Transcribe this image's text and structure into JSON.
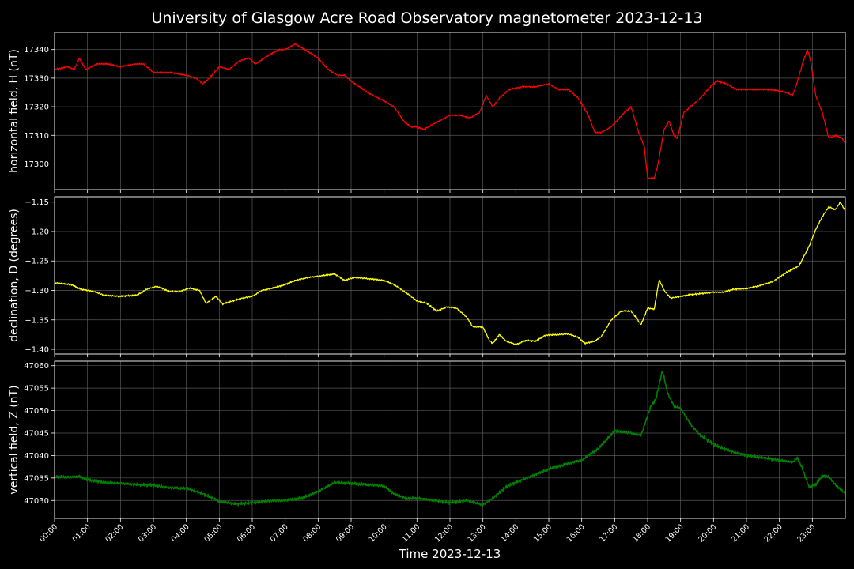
{
  "chart_data": {
    "type": "line",
    "title": "University of Glasgow Acre Road Observatory magnetometer 2023-12-13",
    "xlabel": "Time 2023-12-13",
    "x_range_hours": [
      0,
      24
    ],
    "x_ticks": [
      "00:00",
      "01:00",
      "02:00",
      "03:00",
      "04:00",
      "05:00",
      "06:00",
      "07:00",
      "08:00",
      "09:00",
      "10:00",
      "11:00",
      "12:00",
      "13:00",
      "14:00",
      "15:00",
      "16:00",
      "17:00",
      "18:00",
      "19:00",
      "20:00",
      "21:00",
      "22:00",
      "23:00"
    ],
    "grid": true,
    "panels": [
      {
        "id": "H",
        "ylabel": "horizontal field, H (nT)",
        "color": "#ff0000",
        "ylim": [
          17291,
          17346
        ],
        "yticks": [
          17300,
          17310,
          17320,
          17330,
          17340
        ],
        "ytick_labels": [
          "17300",
          "17310",
          "17320",
          "17330",
          "17340"
        ],
        "points": [
          [
            0,
            17333
          ],
          [
            0.4,
            17334
          ],
          [
            0.6,
            17333
          ],
          [
            0.75,
            17337
          ],
          [
            0.95,
            17333
          ],
          [
            1.3,
            17335
          ],
          [
            1.6,
            17335
          ],
          [
            2,
            17334
          ],
          [
            2.5,
            17335
          ],
          [
            2.7,
            17335
          ],
          [
            3,
            17332
          ],
          [
            3.5,
            17332
          ],
          [
            4,
            17331
          ],
          [
            4.3,
            17330
          ],
          [
            4.5,
            17328
          ],
          [
            4.7,
            17330
          ],
          [
            5,
            17334
          ],
          [
            5.3,
            17333
          ],
          [
            5.6,
            17336
          ],
          [
            5.9,
            17337
          ],
          [
            6.1,
            17335
          ],
          [
            6.5,
            17338
          ],
          [
            6.8,
            17340
          ],
          [
            7,
            17340
          ],
          [
            7.3,
            17342
          ],
          [
            7.6,
            17340
          ],
          [
            8,
            17337
          ],
          [
            8.3,
            17333
          ],
          [
            8.6,
            17331
          ],
          [
            8.8,
            17331
          ],
          [
            9,
            17329
          ],
          [
            9.5,
            17325
          ],
          [
            10,
            17322
          ],
          [
            10.3,
            17320
          ],
          [
            10.6,
            17315
          ],
          [
            10.8,
            17313
          ],
          [
            11,
            17313
          ],
          [
            11.2,
            17312
          ],
          [
            11.5,
            17314
          ],
          [
            12,
            17317
          ],
          [
            12.3,
            17317
          ],
          [
            12.6,
            17316
          ],
          [
            12.9,
            17318
          ],
          [
            13.1,
            17324
          ],
          [
            13.3,
            17320
          ],
          [
            13.5,
            17323
          ],
          [
            13.8,
            17326
          ],
          [
            14.2,
            17327
          ],
          [
            14.6,
            17327
          ],
          [
            15,
            17328
          ],
          [
            15.3,
            17326
          ],
          [
            15.6,
            17326
          ],
          [
            15.9,
            17323
          ],
          [
            16.2,
            17317
          ],
          [
            16.4,
            17311
          ],
          [
            16.6,
            17311
          ],
          [
            16.9,
            17313
          ],
          [
            17.3,
            17318
          ],
          [
            17.5,
            17320
          ],
          [
            17.7,
            17312
          ],
          [
            17.9,
            17306
          ],
          [
            18,
            17295
          ],
          [
            18.2,
            17295
          ],
          [
            18.3,
            17299
          ],
          [
            18.5,
            17312
          ],
          [
            18.65,
            17315
          ],
          [
            18.8,
            17310
          ],
          [
            18.9,
            17309
          ],
          [
            19.1,
            17318
          ],
          [
            19.4,
            17321
          ],
          [
            19.6,
            17323
          ],
          [
            19.9,
            17327
          ],
          [
            20.1,
            17329
          ],
          [
            20.4,
            17328
          ],
          [
            20.7,
            17326
          ],
          [
            21,
            17326
          ],
          [
            21.4,
            17326
          ],
          [
            21.8,
            17326
          ],
          [
            22.2,
            17325
          ],
          [
            22.4,
            17324
          ],
          [
            22.5,
            17327
          ],
          [
            22.7,
            17335
          ],
          [
            22.85,
            17340
          ],
          [
            22.95,
            17336
          ],
          [
            23.1,
            17324
          ],
          [
            23.3,
            17318
          ],
          [
            23.5,
            17309
          ],
          [
            23.7,
            17310
          ],
          [
            23.9,
            17309
          ],
          [
            24,
            17307
          ]
        ]
      },
      {
        "id": "D",
        "ylabel": "declination, D (degrees)",
        "color": "#ffff00",
        "ylim": [
          -1.408,
          -1.141
        ],
        "yticks": [
          -1.4,
          -1.35,
          -1.3,
          -1.25,
          -1.2,
          -1.15
        ],
        "ytick_labels": [
          "−1.40",
          "−1.35",
          "−1.30",
          "−1.25",
          "−1.20",
          "−1.15"
        ],
        "points": [
          [
            0,
            -1.287
          ],
          [
            0.5,
            -1.29
          ],
          [
            0.8,
            -1.298
          ],
          [
            1.2,
            -1.302
          ],
          [
            1.5,
            -1.308
          ],
          [
            2,
            -1.31
          ],
          [
            2.5,
            -1.308
          ],
          [
            2.8,
            -1.298
          ],
          [
            3.1,
            -1.293
          ],
          [
            3.5,
            -1.302
          ],
          [
            3.8,
            -1.302
          ],
          [
            4.1,
            -1.296
          ],
          [
            4.4,
            -1.3
          ],
          [
            4.6,
            -1.322
          ],
          [
            4.9,
            -1.31
          ],
          [
            5.1,
            -1.323
          ],
          [
            5.4,
            -1.318
          ],
          [
            5.7,
            -1.313
          ],
          [
            6,
            -1.31
          ],
          [
            6.3,
            -1.3
          ],
          [
            6.7,
            -1.295
          ],
          [
            7,
            -1.29
          ],
          [
            7.3,
            -1.283
          ],
          [
            7.7,
            -1.278
          ],
          [
            8,
            -1.276
          ],
          [
            8.5,
            -1.272
          ],
          [
            8.8,
            -1.283
          ],
          [
            9.1,
            -1.278
          ],
          [
            9.5,
            -1.28
          ],
          [
            10,
            -1.283
          ],
          [
            10.3,
            -1.29
          ],
          [
            10.7,
            -1.305
          ],
          [
            11,
            -1.318
          ],
          [
            11.3,
            -1.322
          ],
          [
            11.6,
            -1.335
          ],
          [
            11.9,
            -1.328
          ],
          [
            12.2,
            -1.33
          ],
          [
            12.5,
            -1.345
          ],
          [
            12.7,
            -1.362
          ],
          [
            13,
            -1.362
          ],
          [
            13.2,
            -1.385
          ],
          [
            13.3,
            -1.39
          ],
          [
            13.5,
            -1.375
          ],
          [
            13.7,
            -1.386
          ],
          [
            14,
            -1.392
          ],
          [
            14.3,
            -1.385
          ],
          [
            14.6,
            -1.386
          ],
          [
            14.9,
            -1.376
          ],
          [
            15.3,
            -1.375
          ],
          [
            15.6,
            -1.374
          ],
          [
            15.9,
            -1.38
          ],
          [
            16.1,
            -1.39
          ],
          [
            16.4,
            -1.386
          ],
          [
            16.6,
            -1.378
          ],
          [
            16.9,
            -1.35
          ],
          [
            17.2,
            -1.335
          ],
          [
            17.5,
            -1.335
          ],
          [
            17.8,
            -1.358
          ],
          [
            18,
            -1.33
          ],
          [
            18.2,
            -1.332
          ],
          [
            18.35,
            -1.282
          ],
          [
            18.5,
            -1.3
          ],
          [
            18.7,
            -1.313
          ],
          [
            19,
            -1.31
          ],
          [
            19.3,
            -1.307
          ],
          [
            19.7,
            -1.305
          ],
          [
            20,
            -1.303
          ],
          [
            20.3,
            -1.303
          ],
          [
            20.6,
            -1.298
          ],
          [
            21,
            -1.297
          ],
          [
            21.4,
            -1.292
          ],
          [
            21.8,
            -1.285
          ],
          [
            22.2,
            -1.27
          ],
          [
            22.6,
            -1.258
          ],
          [
            22.9,
            -1.225
          ],
          [
            23.1,
            -1.197
          ],
          [
            23.3,
            -1.175
          ],
          [
            23.5,
            -1.158
          ],
          [
            23.7,
            -1.163
          ],
          [
            23.85,
            -1.15
          ],
          [
            24,
            -1.165
          ]
        ]
      },
      {
        "id": "Z",
        "ylabel": "vertical field, Z (nT)",
        "color": "#008000",
        "ylim": [
          47026,
          47061
        ],
        "yticks": [
          47030,
          47035,
          47040,
          47045,
          47050,
          47055,
          47060
        ],
        "ytick_labels": [
          "47030",
          "47035",
          "47040",
          "47045",
          "47050",
          "47055",
          "47060"
        ],
        "points": [
          [
            0,
            47035.3
          ],
          [
            0.5,
            47035.2
          ],
          [
            0.75,
            47035.4
          ],
          [
            1,
            47034.6
          ],
          [
            1.5,
            47034
          ],
          [
            2,
            47033.8
          ],
          [
            2.5,
            47033.5
          ],
          [
            3,
            47033.4
          ],
          [
            3.5,
            47032.8
          ],
          [
            4,
            47032.7
          ],
          [
            4.5,
            47031.5
          ],
          [
            5,
            47029.8
          ],
          [
            5.5,
            47029.2
          ],
          [
            6,
            47029.5
          ],
          [
            6.5,
            47029.9
          ],
          [
            7,
            47030
          ],
          [
            7.5,
            47030.5
          ],
          [
            8,
            47032
          ],
          [
            8.5,
            47034
          ],
          [
            9,
            47033.8
          ],
          [
            9.5,
            47033.5
          ],
          [
            10,
            47033.2
          ],
          [
            10.3,
            47031.5
          ],
          [
            10.7,
            47030.4
          ],
          [
            11,
            47030.5
          ],
          [
            11.5,
            47030
          ],
          [
            12,
            47029.5
          ],
          [
            12.5,
            47030
          ],
          [
            13,
            47029
          ],
          [
            13.3,
            47030.5
          ],
          [
            13.7,
            47033
          ],
          [
            14,
            47034
          ],
          [
            14.5,
            47035.5
          ],
          [
            15,
            47037
          ],
          [
            15.5,
            47038
          ],
          [
            16,
            47039
          ],
          [
            16.5,
            47041.5
          ],
          [
            17,
            47045.5
          ],
          [
            17.5,
            47045
          ],
          [
            17.8,
            47044.5
          ],
          [
            18.1,
            47051
          ],
          [
            18.25,
            47052.5
          ],
          [
            18.45,
            47059
          ],
          [
            18.6,
            47054
          ],
          [
            18.8,
            47051
          ],
          [
            19,
            47050.5
          ],
          [
            19.3,
            47047
          ],
          [
            19.6,
            47044.5
          ],
          [
            20,
            47042.5
          ],
          [
            20.5,
            47041
          ],
          [
            21,
            47040
          ],
          [
            21.5,
            47039.5
          ],
          [
            22,
            47039
          ],
          [
            22.4,
            47038.5
          ],
          [
            22.55,
            47039.5
          ],
          [
            22.7,
            47037
          ],
          [
            22.9,
            47033
          ],
          [
            23.1,
            47033.5
          ],
          [
            23.3,
            47035.5
          ],
          [
            23.5,
            47035.3
          ],
          [
            23.7,
            47033.5
          ],
          [
            24,
            47031.5
          ]
        ]
      }
    ]
  }
}
